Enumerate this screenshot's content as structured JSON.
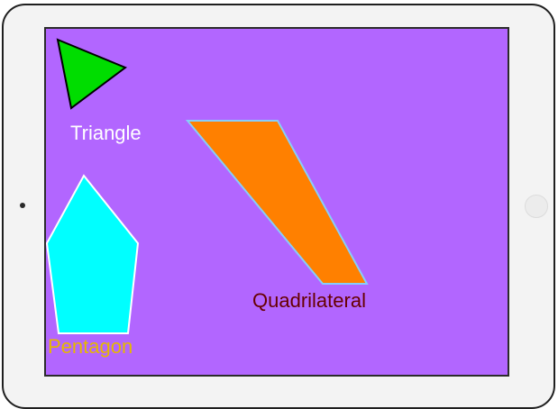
{
  "shapes": {
    "triangle": {
      "label": "Triangle",
      "fill": "#00dd00",
      "label_color": "#ffffff"
    },
    "quadrilateral": {
      "label": "Quadrilateral",
      "fill": "#ff8000",
      "label_color": "#660000"
    },
    "pentagon": {
      "label": "Pentagon",
      "fill": "#00ffff",
      "label_color": "#e6b800"
    }
  },
  "colors": {
    "screen_background": "#b266ff",
    "device_frame": "#f3f3f3"
  }
}
